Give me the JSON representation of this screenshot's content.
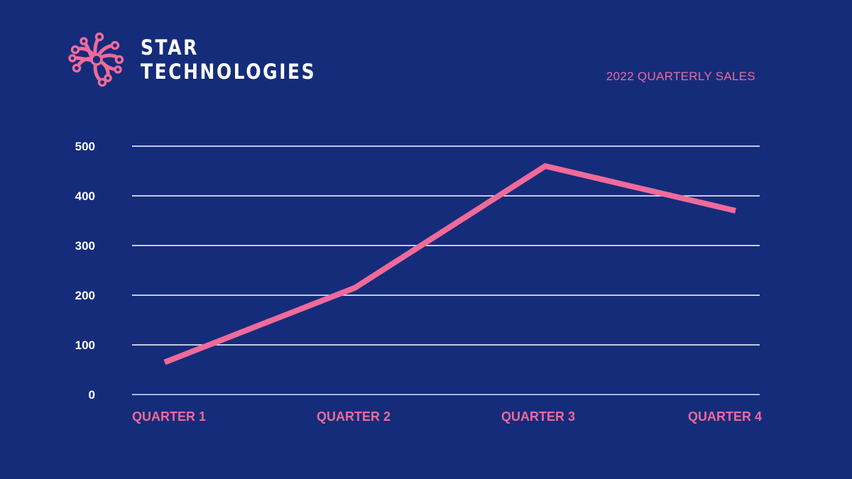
{
  "brand": {
    "line1": "STAR",
    "line2": "TECHNOLOGIES",
    "logo_icon": "circuit-flower-icon"
  },
  "colors": {
    "background": "#152c7b",
    "accent": "#f06a9a",
    "grid": "#ffffff",
    "text": "#ffffff"
  },
  "chart_data": {
    "type": "line",
    "title": "2022 QUARTERLY SALES",
    "categories": [
      "QUARTER 1",
      "QUARTER 2",
      "QUARTER 3",
      "QUARTER 4"
    ],
    "series": [
      {
        "name": "Sales",
        "values": [
          65,
          215,
          460,
          370
        ]
      }
    ],
    "yticks": [
      0,
      100,
      200,
      300,
      400,
      500
    ],
    "ylim": [
      0,
      500
    ],
    "xlabel": "",
    "ylabel": "",
    "grid": true
  }
}
